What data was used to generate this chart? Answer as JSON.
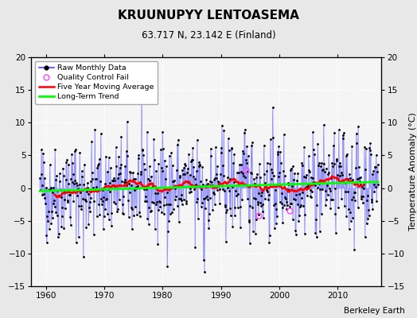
{
  "title": "KRUUNUPYY LENTOASEMA",
  "subtitle": "63.717 N, 23.142 E (Finland)",
  "ylabel": "Temperature Anomaly (°C)",
  "attribution": "Berkeley Earth",
  "xlim": [
    1957.5,
    2017.5
  ],
  "ylim": [
    -15,
    20
  ],
  "yticks": [
    -15,
    -10,
    -5,
    0,
    5,
    10,
    15,
    20
  ],
  "xticks": [
    1960,
    1970,
    1980,
    1990,
    2000,
    2010
  ],
  "bg_color": "#e8e8e8",
  "plot_bg_color": "#f5f5f5",
  "seed": 42,
  "qc_fail_times": [
    1994.25,
    1996.5,
    2001.75
  ],
  "qc_fail_vals": [
    2.8,
    -4.2,
    -3.5
  ]
}
